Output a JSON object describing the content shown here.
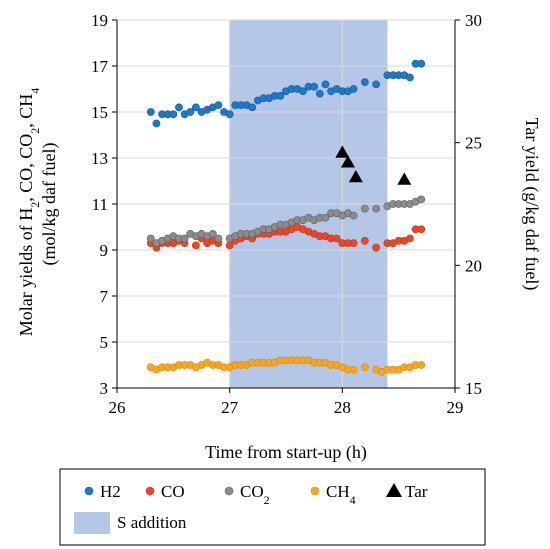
{
  "chart_data": {
    "type": "scatter",
    "xlabel": "Time from start-up (h)",
    "ylabel_left_parts": [
      {
        "t": "Molar yields of H"
      },
      {
        "t": "2",
        "sub": true
      },
      {
        "t": ", CO, CO"
      },
      {
        "t": "2",
        "sub": true
      },
      {
        "t": ", CH"
      },
      {
        "t": "4",
        "sub": true
      }
    ],
    "ylabel_left_line2": "(mol/kg daf fuel)",
    "ylabel_right": "Tar yield (g/kg daf fuel)",
    "xlim": [
      26,
      29
    ],
    "ylim_left": [
      3,
      19
    ],
    "ylim_right": [
      15,
      30
    ],
    "xticks": [
      26,
      27,
      28,
      29
    ],
    "yticks_left": [
      3,
      5,
      7,
      9,
      11,
      13,
      15,
      17,
      19
    ],
    "yticks_right": [
      15,
      20,
      25,
      30
    ],
    "grid": true,
    "legend_position": "bottom",
    "shaded_region": {
      "name": "S addition",
      "x": [
        27.0,
        28.4
      ],
      "color": "#b4c7e7"
    },
    "series": [
      {
        "name": "H2",
        "legend_parts": [
          {
            "t": "H2"
          }
        ],
        "axis": "left",
        "marker": "circle",
        "color": "#1f78c8",
        "x": [
          26.3,
          26.35,
          26.4,
          26.45,
          26.5,
          26.55,
          26.6,
          26.65,
          26.7,
          26.75,
          26.8,
          26.85,
          26.9,
          26.95,
          27.0,
          27.05,
          27.1,
          27.15,
          27.2,
          27.25,
          27.3,
          27.35,
          27.4,
          27.45,
          27.5,
          27.55,
          27.6,
          27.65,
          27.7,
          27.75,
          27.8,
          27.85,
          27.9,
          27.95,
          28.0,
          28.05,
          28.1,
          28.2,
          28.3,
          28.4,
          28.45,
          28.5,
          28.55,
          28.6,
          28.65,
          28.7
        ],
        "y": [
          15.0,
          14.5,
          14.9,
          14.9,
          14.9,
          15.2,
          14.9,
          15.0,
          15.2,
          15.0,
          15.1,
          15.2,
          15.3,
          15.0,
          14.9,
          15.3,
          15.3,
          15.3,
          15.2,
          15.5,
          15.6,
          15.6,
          15.7,
          15.7,
          15.9,
          16.0,
          16.0,
          15.9,
          16.1,
          16.1,
          15.8,
          16.2,
          15.9,
          16.0,
          15.9,
          15.9,
          16.0,
          16.3,
          16.2,
          16.6,
          16.6,
          16.6,
          16.6,
          16.5,
          17.1,
          17.1
        ]
      },
      {
        "name": "CO",
        "legend_parts": [
          {
            "t": "CO"
          }
        ],
        "axis": "left",
        "marker": "circle",
        "color": "#e8472a",
        "x": [
          26.3,
          26.35,
          26.4,
          26.45,
          26.5,
          26.55,
          26.6,
          26.7,
          26.75,
          26.8,
          26.85,
          26.9,
          27.0,
          27.05,
          27.1,
          27.15,
          27.2,
          27.25,
          27.3,
          27.35,
          27.4,
          27.45,
          27.5,
          27.55,
          27.6,
          27.65,
          27.7,
          27.75,
          27.8,
          27.85,
          27.9,
          27.95,
          28.0,
          28.05,
          28.1,
          28.2,
          28.3,
          28.4,
          28.45,
          28.5,
          28.55,
          28.6,
          28.65,
          28.7
        ],
        "y": [
          9.3,
          9.1,
          9.3,
          9.3,
          9.3,
          9.4,
          9.3,
          9.2,
          9.5,
          9.3,
          9.4,
          9.3,
          9.2,
          9.4,
          9.5,
          9.6,
          9.5,
          9.7,
          9.7,
          9.7,
          9.8,
          9.8,
          9.8,
          9.9,
          10.0,
          9.9,
          9.8,
          9.7,
          9.6,
          9.6,
          9.5,
          9.5,
          9.3,
          9.3,
          9.3,
          9.4,
          9.1,
          9.3,
          9.3,
          9.4,
          9.4,
          9.5,
          9.9,
          9.9
        ]
      },
      {
        "name": "CO2",
        "legend_parts": [
          {
            "t": "CO"
          },
          {
            "t": "2",
            "sub": true
          }
        ],
        "axis": "left",
        "marker": "circle",
        "color": "#8c8c8c",
        "x": [
          26.3,
          26.35,
          26.4,
          26.45,
          26.5,
          26.55,
          26.6,
          26.65,
          26.7,
          26.75,
          26.8,
          26.85,
          26.9,
          27.0,
          27.05,
          27.1,
          27.15,
          27.2,
          27.25,
          27.3,
          27.35,
          27.4,
          27.45,
          27.5,
          27.55,
          27.6,
          27.65,
          27.7,
          27.75,
          27.8,
          27.85,
          27.9,
          27.95,
          28.0,
          28.05,
          28.1,
          28.2,
          28.3,
          28.4,
          28.45,
          28.5,
          28.55,
          28.6,
          28.65,
          28.7
        ],
        "y": [
          9.5,
          9.3,
          9.4,
          9.5,
          9.6,
          9.5,
          9.5,
          9.7,
          9.6,
          9.7,
          9.6,
          9.7,
          9.5,
          9.5,
          9.6,
          9.7,
          9.7,
          9.7,
          9.8,
          9.9,
          9.9,
          10.0,
          10.1,
          10.1,
          10.2,
          10.3,
          10.3,
          10.4,
          10.3,
          10.4,
          10.4,
          10.6,
          10.6,
          10.5,
          10.6,
          10.5,
          10.8,
          10.8,
          10.9,
          11.0,
          11.0,
          11.0,
          11.0,
          11.1,
          11.2
        ]
      },
      {
        "name": "CH4",
        "legend_parts": [
          {
            "t": "CH"
          },
          {
            "t": "4",
            "sub": true
          }
        ],
        "axis": "left",
        "marker": "circle",
        "color": "#f5a623",
        "x": [
          26.3,
          26.35,
          26.4,
          26.45,
          26.5,
          26.55,
          26.6,
          26.65,
          26.7,
          26.75,
          26.8,
          26.85,
          26.9,
          26.95,
          27.0,
          27.05,
          27.1,
          27.15,
          27.2,
          27.25,
          27.3,
          27.35,
          27.4,
          27.45,
          27.5,
          27.55,
          27.6,
          27.65,
          27.7,
          27.75,
          27.8,
          27.85,
          27.9,
          27.95,
          28.0,
          28.05,
          28.1,
          28.2,
          28.3,
          28.35,
          28.4,
          28.45,
          28.5,
          28.55,
          28.6,
          28.65,
          28.7
        ],
        "y": [
          3.9,
          3.8,
          3.9,
          3.9,
          3.9,
          4.0,
          4.0,
          4.0,
          3.9,
          4.0,
          4.1,
          4.0,
          4.0,
          3.9,
          3.9,
          4.0,
          4.0,
          4.0,
          4.1,
          4.1,
          4.1,
          4.1,
          4.1,
          4.2,
          4.2,
          4.2,
          4.2,
          4.2,
          4.2,
          4.1,
          4.1,
          4.1,
          4.0,
          4.0,
          3.9,
          3.8,
          3.8,
          3.9,
          3.8,
          3.7,
          3.8,
          3.8,
          3.8,
          3.9,
          3.9,
          4.0,
          4.0
        ]
      },
      {
        "name": "Tar",
        "legend_parts": [
          {
            "t": "Tar"
          }
        ],
        "axis": "right",
        "marker": "triangle",
        "color": "#000000",
        "x": [
          28.0,
          28.05,
          28.12,
          28.55
        ],
        "y": [
          24.6,
          24.2,
          23.6,
          23.5
        ]
      }
    ]
  }
}
